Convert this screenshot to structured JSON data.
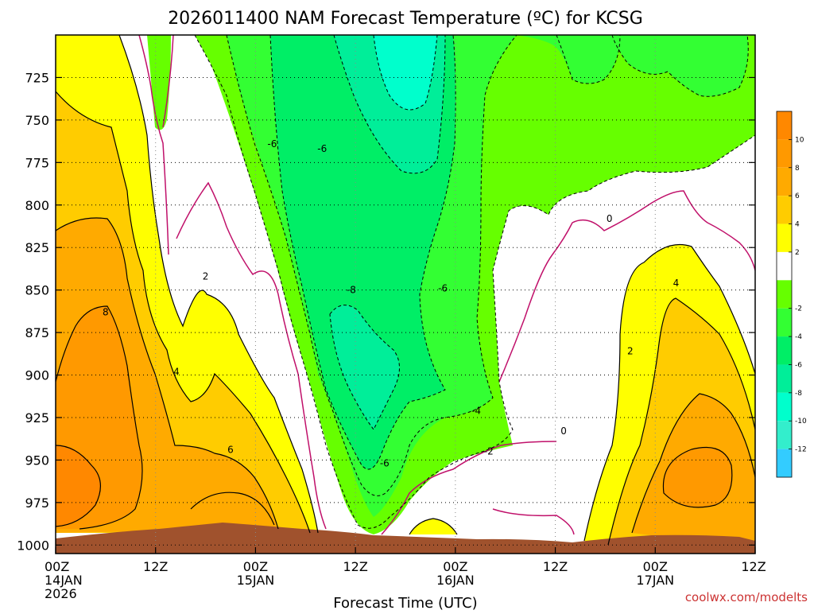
{
  "title": "2026011400 NAM Forecast Temperature (ºC) for KCSG",
  "credit": "coolwx.com/modelts",
  "chart_data": {
    "type": "heatmap",
    "title": "2026011400 NAM Forecast Temperature (ºC) for KCSG",
    "xlabel": "Forecast Time (UTC)",
    "ylabel": "",
    "x_hours": [
      0,
      84
    ],
    "y_levels_hPa": [
      700,
      1005
    ],
    "y_ticks": [
      725,
      750,
      775,
      800,
      825,
      850,
      875,
      900,
      925,
      950,
      975,
      1000
    ],
    "x_ticks": [
      {
        "h": 0,
        "lines": [
          "00Z",
          "14JAN",
          "2026"
        ]
      },
      {
        "h": 12,
        "lines": [
          "12Z"
        ]
      },
      {
        "h": 24,
        "lines": [
          "00Z",
          "15JAN"
        ]
      },
      {
        "h": 36,
        "lines": [
          "12Z"
        ]
      },
      {
        "h": 48,
        "lines": [
          "00Z",
          "16JAN"
        ]
      },
      {
        "h": 60,
        "lines": [
          "12Z"
        ]
      },
      {
        "h": 72,
        "lines": [
          "00Z",
          "17JAN"
        ]
      },
      {
        "h": 84,
        "lines": [
          "12Z"
        ]
      }
    ],
    "grid": true,
    "colorbar": {
      "position": "right",
      "levels": [
        -14,
        -12,
        -10,
        -8,
        -6,
        -4,
        -2,
        0,
        2,
        4,
        6,
        8,
        10,
        12
      ],
      "labels": [
        "-12",
        "-10",
        "-8",
        "-6",
        "-4",
        "-2",
        "2",
        "4",
        "6",
        "8",
        "10"
      ],
      "colors": [
        "#33ccff",
        "#33eecc",
        "#00ffcc",
        "#00ee99",
        "#00ee66",
        "#33ff33",
        "#66ff00",
        "#ffffff",
        "#ffff00",
        "#ffcc00",
        "#ffaa00",
        "#ff9900",
        "#ff8800"
      ]
    },
    "contour_labels": [
      {
        "text": "-6",
        "h": 26.0,
        "p": 764
      },
      {
        "text": "-6",
        "h": 32.0,
        "p": 767
      },
      {
        "text": "-8",
        "h": 35.5,
        "p": 850
      },
      {
        "text": "-6",
        "h": 46.5,
        "p": 849
      },
      {
        "text": "-6",
        "h": 39.5,
        "p": 952
      },
      {
        "text": "-4",
        "h": 50.5,
        "p": 921
      },
      {
        "text": "-2",
        "h": 52.0,
        "p": 945
      },
      {
        "text": "0",
        "h": 66.5,
        "p": 808
      },
      {
        "text": "0",
        "h": 61.0,
        "p": 933
      },
      {
        "text": "2",
        "h": 18.0,
        "p": 842
      },
      {
        "text": "2",
        "h": 69.0,
        "p": 886
      },
      {
        "text": "4",
        "h": 14.5,
        "p": 898
      },
      {
        "text": "4",
        "h": 74.5,
        "p": 846
      },
      {
        "text": "6",
        "h": 21.0,
        "p": 944
      },
      {
        "text": "8",
        "h": 6.0,
        "p": 863
      }
    ],
    "fields": [
      {
        "label": "ground",
        "color": "#a0522d"
      }
    ]
  }
}
